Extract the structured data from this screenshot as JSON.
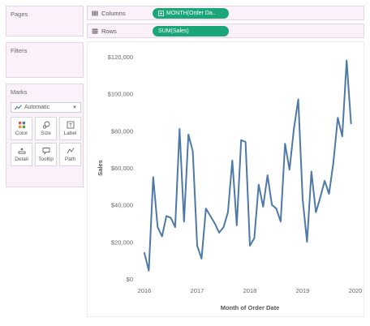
{
  "panes": {
    "pages_title": "Pages",
    "filters_title": "Filters",
    "marks_title": "Marks"
  },
  "marks": {
    "mark_type": "Automatic",
    "buttons": [
      {
        "label": "Color",
        "icon": "color-icon"
      },
      {
        "label": "Size",
        "icon": "size-icon"
      },
      {
        "label": "Label",
        "icon": "label-icon"
      },
      {
        "label": "Detail",
        "icon": "detail-icon"
      },
      {
        "label": "Tooltip",
        "icon": "tooltip-icon"
      },
      {
        "label": "Path",
        "icon": "path-icon"
      }
    ]
  },
  "shelves": {
    "columns_label": "Columns",
    "columns_pill": "MONTH(Order Da..",
    "rows_label": "Rows",
    "rows_pill": "SUM(Sales)"
  },
  "colors": {
    "pill": "#1aa679",
    "line": "#4e79a7"
  },
  "chart_data": {
    "type": "line",
    "xlabel": "Month of Order Date",
    "ylabel": "Sales",
    "x_ticks": [
      "2016",
      "2017",
      "2018",
      "2019",
      "2020"
    ],
    "y_ticks": [
      "$0",
      "$20,000",
      "$40,000",
      "$60,000",
      "$80,000",
      "$100,000",
      "$120,000"
    ],
    "ylim": [
      0,
      120000
    ],
    "xlim": [
      "2016-01",
      "2020-01"
    ],
    "grid": false,
    "series": [
      {
        "x": [
          "2016-01",
          "2016-02",
          "2016-03",
          "2016-04",
          "2016-05",
          "2016-06",
          "2016-07",
          "2016-08",
          "2016-09",
          "2016-10",
          "2016-11",
          "2016-12",
          "2017-01",
          "2017-02",
          "2017-03",
          "2017-04",
          "2017-05",
          "2017-06",
          "2017-07",
          "2017-08",
          "2017-09",
          "2017-10",
          "2017-11",
          "2017-12",
          "2018-01",
          "2018-02",
          "2018-03",
          "2018-04",
          "2018-05",
          "2018-06",
          "2018-07",
          "2018-08",
          "2018-09",
          "2018-10",
          "2018-11",
          "2018-12",
          "2019-01",
          "2019-02",
          "2019-03",
          "2019-04",
          "2019-05",
          "2019-06",
          "2019-07",
          "2019-08",
          "2019-09",
          "2019-10",
          "2019-11",
          "2019-12"
        ],
        "values": [
          14000,
          4500,
          55000,
          28000,
          23000,
          34000,
          33000,
          28000,
          81000,
          31000,
          78000,
          69000,
          18000,
          11000,
          38000,
          34000,
          30000,
          25000,
          28000,
          36000,
          64000,
          29000,
          75000,
          74000,
          18000,
          22000,
          51000,
          39000,
          56000,
          40000,
          38000,
          31000,
          73000,
          59000,
          81000,
          97000,
          43000,
          20000,
          58000,
          36000,
          44000,
          53000,
          46000,
          63000,
          87000,
          77000,
          118000,
          84000
        ]
      }
    ]
  }
}
